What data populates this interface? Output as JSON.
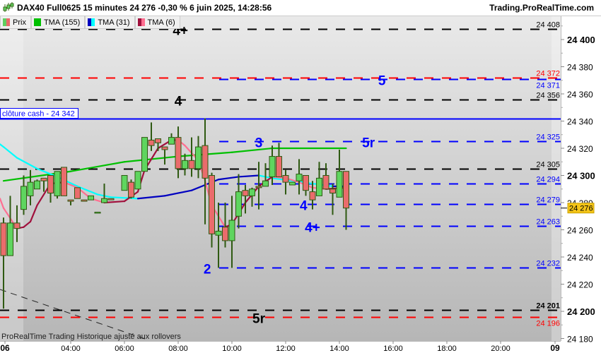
{
  "header": {
    "title": "DAX40 Full0625 15 minutes 24 276 -0,30 % 6 juin 2025, 14:28:56",
    "site": "Trading.ProRealTime.com",
    "logo_icon": "candlestick-icon"
  },
  "legend": [
    {
      "label": "Prix",
      "colors": [
        "#5fcf5f",
        "#e86a6a"
      ]
    },
    {
      "label": "TMA (155)",
      "colors": [
        "#00c000",
        "#00c000"
      ]
    },
    {
      "label": "TMA (31)",
      "colors": [
        "#0000c0",
        "#00ffff"
      ]
    },
    {
      "label": "TMA (6)",
      "colors": [
        "#a0103c",
        "#ff6f91"
      ]
    }
  ],
  "footer_note": "ProRealTime Trading  Historique ajusté aux rollovers",
  "current_price_label": "24 276",
  "chart_data": {
    "type": "candlestick",
    "ylim": [
      24175,
      24420
    ],
    "yticks": [
      {
        "v": 24400,
        "label": "24 400",
        "bold": true
      },
      {
        "v": 24380,
        "label": "24 380"
      },
      {
        "v": 24360,
        "label": "24 360"
      },
      {
        "v": 24340,
        "label": "24 340"
      },
      {
        "v": 24320,
        "label": "24 320"
      },
      {
        "v": 24300,
        "label": "24 300",
        "bold": true
      },
      {
        "v": 24280,
        "label": "24 280"
      },
      {
        "v": 24260,
        "label": "24 260"
      },
      {
        "v": 24240,
        "label": "24 240"
      },
      {
        "v": 24220,
        "label": "24 220"
      },
      {
        "v": 24200,
        "label": "24 200",
        "bold": true
      },
      {
        "v": 24180,
        "label": "24 180"
      }
    ],
    "xticks": [
      {
        "t": "00:00",
        "label": "06",
        "bold": true
      },
      {
        "t": "04:00",
        "label": "04:00"
      },
      {
        "t": "06:00",
        "label": "06:00"
      },
      {
        "t": "08:00",
        "label": "08:00"
      },
      {
        "t": "10:00",
        "label": "10:00"
      },
      {
        "t": "12:00",
        "label": "12:00"
      },
      {
        "t": "14:00",
        "label": "14:00"
      },
      {
        "t": "16:00",
        "label": "16:00"
      },
      {
        "t": "18:00",
        "label": "18:00"
      },
      {
        "t": "20:00",
        "label": "20:00"
      },
      {
        "t": "24:00",
        "label": "09",
        "bold": true
      }
    ],
    "candles": [
      [
        "01:30",
        24265,
        24269,
        24202,
        24241
      ],
      [
        "01:45",
        24241,
        24285,
        24241,
        24265
      ],
      [
        "02:00",
        24265,
        24278,
        24251,
        24261
      ],
      [
        "02:15",
        24275,
        24300,
        24271,
        24292
      ],
      [
        "02:30",
        24285,
        24304,
        24278,
        24295
      ],
      [
        "02:45",
        24290,
        24297,
        24290,
        24296
      ],
      [
        "03:00",
        24298,
        24298,
        24288,
        24296
      ],
      [
        "03:15",
        24300,
        24300,
        24280,
        24287
      ],
      [
        "03:30",
        24285,
        24303,
        24283,
        24303
      ],
      [
        "03:45",
        24306,
        24306,
        24285,
        24285
      ],
      [
        "04:00",
        24282,
        24282,
        24278,
        24281
      ],
      [
        "04:15",
        24291,
        24291,
        24283,
        24283
      ],
      [
        "04:30",
        24282,
        24282,
        24281,
        24281
      ],
      [
        "04:45",
        24282,
        24285,
        24282,
        24285
      ],
      [
        "05:00",
        24273,
        24273,
        24273,
        24273
      ],
      [
        "05:15",
        24280,
        24294,
        24280,
        24283
      ],
      [
        "05:30",
        24283,
        24283,
        24282,
        24282
      ],
      [
        "06:00",
        24289,
        24300,
        24289,
        24300
      ],
      [
        "06:15",
        24295,
        24297,
        24283,
        24284
      ],
      [
        "06:30",
        24290,
        24303,
        24290,
        24303
      ],
      [
        "06:45",
        24303,
        24328,
        24303,
        24328
      ],
      [
        "07:00",
        24326,
        24339,
        24318,
        24322
      ],
      [
        "07:15",
        24327,
        24327,
        24318,
        24324
      ],
      [
        "07:30",
        24321,
        24321,
        24308,
        24319
      ],
      [
        "07:45",
        24323,
        24331,
        24323,
        24328
      ],
      [
        "08:00",
        24328,
        24336,
        24298,
        24305
      ],
      [
        "08:15",
        24305,
        24316,
        24300,
        24311
      ],
      [
        "08:30",
        24311,
        24328,
        24299,
        24305
      ],
      [
        "08:45",
        24305,
        24329,
        24298,
        24321
      ],
      [
        "09:00",
        24322,
        24342,
        24264,
        24298
      ],
      [
        "09:15",
        24300,
        24302,
        24247,
        24257
      ],
      [
        "09:30",
        24256,
        24280,
        24232,
        24259
      ],
      [
        "09:45",
        24262,
        24280,
        24247,
        24252
      ],
      [
        "10:00",
        24252,
        24285,
        24232,
        24267
      ],
      [
        "10:15",
        24270,
        24301,
        24261,
        24288
      ],
      [
        "10:30",
        24289,
        24293,
        24272,
        24285
      ],
      [
        "10:45",
        24285,
        24291,
        24277,
        24290
      ],
      [
        "11:00",
        24292,
        24310,
        24275,
        24291
      ],
      [
        "11:15",
        24292,
        24309,
        24292,
        24296
      ],
      [
        "11:30",
        24299,
        24322,
        24293,
        24314
      ],
      [
        "11:45",
        24314,
        24324,
        24299,
        24299
      ],
      [
        "12:00",
        24300,
        24304,
        24286,
        24295
      ],
      [
        "12:15",
        24293,
        24295,
        24293,
        24295
      ],
      [
        "12:30",
        24296,
        24312,
        24286,
        24301
      ],
      [
        "12:45",
        24300,
        24300,
        24285,
        24289
      ],
      [
        "13:00",
        24288,
        24296,
        24275,
        24282
      ],
      [
        "13:15",
        24285,
        24310,
        24285,
        24298
      ],
      [
        "13:30",
        24300,
        24309,
        24290,
        24290
      ],
      [
        "13:45",
        24290,
        24294,
        24271,
        24287
      ],
      [
        "14:00",
        24284,
        24319,
        24284,
        24303
      ],
      [
        "14:15",
        24303,
        24303,
        24260,
        24276
      ]
    ],
    "series": [
      {
        "name": "TMA (155)",
        "up_color": "#00c000",
        "down_color": "#00c000",
        "points": [
          [
            "01:30",
            24296
          ],
          [
            "04:00",
            24303
          ],
          [
            "06:00",
            24310
          ],
          [
            "08:00",
            24314
          ],
          [
            "10:00",
            24317
          ],
          [
            "11:30",
            24320
          ],
          [
            "14:15",
            24320
          ]
        ]
      },
      {
        "name": "TMA (31)",
        "up_color": "#0000c0",
        "down_color": "#00ffff",
        "points": [
          [
            "01:15",
            24323
          ],
          [
            "01:30",
            24321
          ],
          [
            "02:00",
            24313
          ],
          [
            "02:45",
            24305
          ],
          [
            "03:30",
            24299
          ],
          [
            "04:15",
            24292
          ],
          [
            "05:00",
            24286
          ],
          [
            "05:30",
            24284
          ],
          [
            "06:30",
            24283
          ],
          [
            "07:30",
            24285
          ],
          [
            "08:30",
            24289
          ],
          [
            "09:00",
            24293
          ],
          [
            "09:30",
            24297
          ],
          [
            "10:15",
            24299
          ],
          [
            "11:00",
            24300
          ],
          [
            "11:30",
            24298
          ],
          [
            "12:15",
            24296
          ],
          [
            "13:00",
            24294
          ],
          [
            "13:45",
            24292
          ],
          [
            "14:15",
            24292
          ]
        ]
      },
      {
        "name": "TMA (6)",
        "up_color": "#a0103c",
        "down_color": "#ff6f91",
        "points": [
          [
            "01:15",
            24283
          ],
          [
            "01:30",
            24276
          ],
          [
            "02:00",
            24261
          ],
          [
            "02:15",
            24262
          ],
          [
            "02:30",
            24266
          ],
          [
            "02:45",
            24278
          ],
          [
            "03:15",
            24294
          ],
          [
            "03:45",
            24295
          ],
          [
            "04:15",
            24291
          ],
          [
            "04:45",
            24283
          ],
          [
            "05:15",
            24280
          ],
          [
            "06:00",
            24281
          ],
          [
            "06:30",
            24288
          ],
          [
            "06:45",
            24304
          ],
          [
            "07:15",
            24320
          ],
          [
            "07:45",
            24326
          ],
          [
            "08:00",
            24326
          ],
          [
            "08:15",
            24322
          ],
          [
            "08:45",
            24311
          ],
          [
            "09:00",
            24296
          ],
          [
            "09:15",
            24278
          ],
          [
            "09:45",
            24262
          ],
          [
            "10:00",
            24264
          ],
          [
            "10:30",
            24280
          ],
          [
            "11:00",
            24292
          ],
          [
            "11:30",
            24299
          ],
          [
            "12:00",
            24298
          ],
          [
            "12:30",
            24295
          ],
          [
            "13:00",
            24291
          ],
          [
            "13:30",
            24290
          ],
          [
            "14:15",
            24291
          ]
        ]
      }
    ],
    "levels": [
      {
        "v": 24408,
        "label": "24 408",
        "color": "#000000",
        "full": true,
        "tag": "4+",
        "tag_at": "08:05",
        "tag_color": "#000000"
      },
      {
        "v": 24372,
        "label": "24 372",
        "color": "#ff0000",
        "full": true
      },
      {
        "v": 24371,
        "label": "24 371",
        "color": "#0000ff",
        "full": false,
        "tag": "5",
        "tag_at": "15:35",
        "tag_color": "#0000ff"
      },
      {
        "v": 24356,
        "label": "24 356",
        "color": "#000000",
        "full": true,
        "tag": "4",
        "tag_at": "08:00",
        "tag_color": "#000000"
      },
      {
        "v": 24325,
        "label": "24 325",
        "color": "#0000ff",
        "full": false,
        "tag": "3",
        "tag_at": "11:00",
        "tag_color": "#0000ff"
      },
      {
        "v": 24305,
        "label": "24 305",
        "color": "#000000",
        "full": true
      },
      {
        "v": 24294,
        "label": "24 294",
        "color": "#0000ff",
        "full": false,
        "nodash_label": true
      },
      {
        "v": 24279,
        "label": "24 279",
        "color": "#0000ff",
        "full": false,
        "tag": "4",
        "tag_at": "12:40",
        "tag_color": "#0000ff"
      },
      {
        "v": 24263,
        "label": "24 263",
        "color": "#0000ff",
        "full": false,
        "tag": "4+",
        "tag_at": "13:00",
        "tag_color": "#0000ff"
      },
      {
        "v": 24232,
        "label": "24 232",
        "color": "#0000ff",
        "full": false,
        "tag": "2",
        "tag_at": "09:05",
        "tag_color": "#0000ff"
      },
      {
        "v": 24201,
        "label": "24 201",
        "color": "#000000",
        "full": true,
        "bold": true
      },
      {
        "v": 24196,
        "label": "24 196",
        "color": "#ff0000",
        "full": true,
        "tag": "5r",
        "tag_at": "11:00",
        "tag_color": "#000000"
      }
    ],
    "extra_tags": [
      {
        "text": "5r",
        "v": 24325,
        "t": "15:05",
        "color": "#0000ff"
      }
    ],
    "cash_close": {
      "v": 24342,
      "label": "clôture cash -  24 342",
      "color": "#0000ff"
    },
    "last_price": 24276
  }
}
